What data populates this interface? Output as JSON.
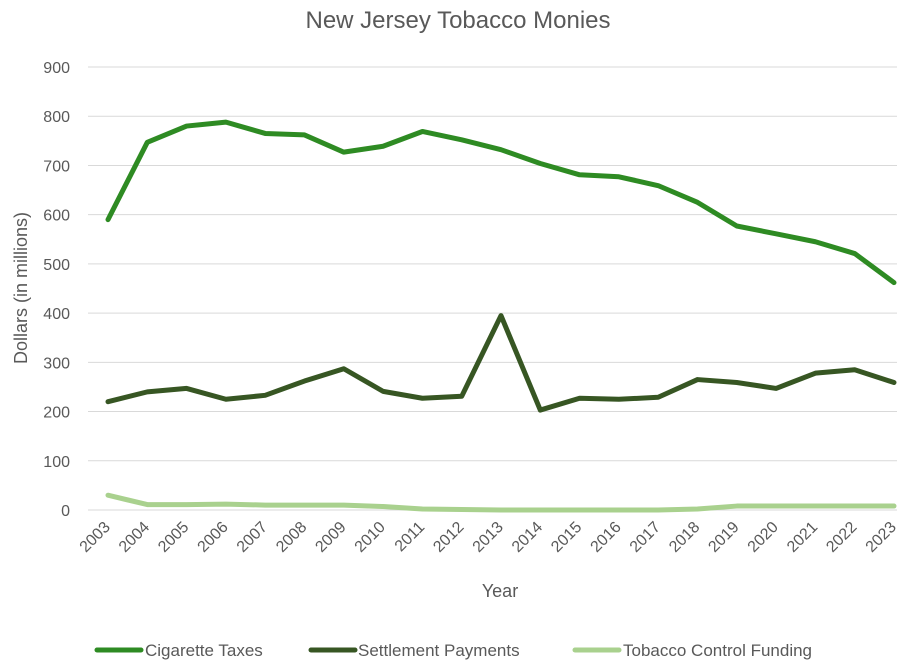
{
  "chart_data": {
    "type": "line",
    "title": "New Jersey Tobacco Monies",
    "xlabel": "Year",
    "ylabel": "Dollars (in millions)",
    "ylim": [
      0,
      900
    ],
    "yticks": [
      0,
      100,
      200,
      300,
      400,
      500,
      600,
      700,
      800,
      900
    ],
    "grid": true,
    "legend_position": "bottom",
    "categories": [
      "2003",
      "2004",
      "2005",
      "2006",
      "2007",
      "2008",
      "2009",
      "2010",
      "2011",
      "2012",
      "2013",
      "2014",
      "2015",
      "2016",
      "2017",
      "2018",
      "2019",
      "2020",
      "2021",
      "2022",
      "2023"
    ],
    "series": [
      {
        "name": "Cigarette Taxes",
        "color": "#2e8b23",
        "values": [
          590,
          747,
          780,
          788,
          765,
          762,
          727,
          739,
          769,
          752,
          732,
          704,
          681,
          677,
          659,
          625,
          577,
          561,
          545,
          521,
          462
        ]
      },
      {
        "name": "Settlement Payments",
        "color": "#375623",
        "values": [
          220,
          240,
          247,
          225,
          233,
          262,
          287,
          241,
          227,
          231,
          395,
          203,
          227,
          225,
          229,
          265,
          259,
          247,
          278,
          285,
          259
        ]
      },
      {
        "name": "Tobacco Control Funding",
        "color": "#a9d18e",
        "values": [
          30,
          11,
          11,
          12,
          10,
          10,
          10,
          7,
          2,
          1,
          0,
          0,
          0,
          0,
          0,
          2,
          8,
          8,
          8,
          8,
          8
        ]
      }
    ]
  }
}
